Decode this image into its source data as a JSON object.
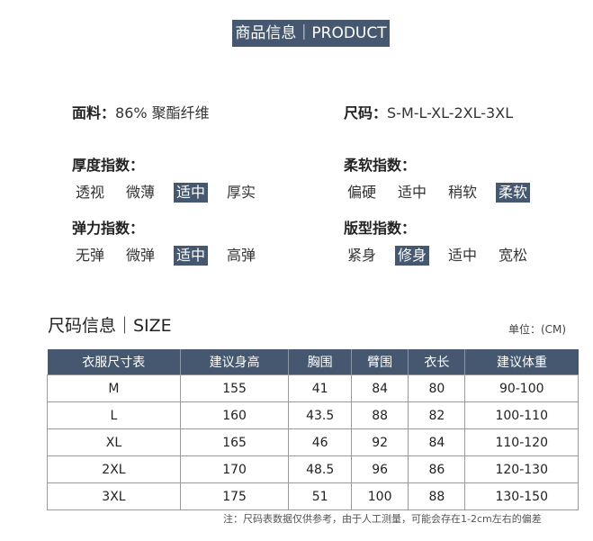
{
  "banner": "商品信息｜PRODUCT",
  "fabric": {
    "label": "面料：",
    "value": "86% 聚酯纤维"
  },
  "size": {
    "label": "尺码：",
    "value": "S-M-L-XL-2XL-3XL"
  },
  "indices": [
    {
      "label": "厚度指数：",
      "options": [
        "透视",
        "微薄",
        "适中",
        "厚实"
      ],
      "selected": 2
    },
    {
      "label": "柔软指数：",
      "options": [
        "偏硬",
        "适中",
        "稍软",
        "柔软"
      ],
      "selected": 3
    },
    {
      "label": "弹力指数：",
      "options": [
        "无弹",
        "微弹",
        "适中",
        "高弹"
      ],
      "selected": 2
    },
    {
      "label": "版型指数：",
      "options": [
        "紧身",
        "修身",
        "适中",
        "宽松"
      ],
      "selected": 1
    }
  ],
  "size_section": {
    "title": "尺码信息｜SIZE",
    "unit": "单位：(CM)"
  },
  "table": {
    "headers": [
      "衣服尺寸表",
      "建议身高",
      "胸围",
      "臂围",
      "衣长",
      "建议体重"
    ],
    "rows": [
      [
        "M",
        "155",
        "41",
        "84",
        "80",
        "90-100"
      ],
      [
        "L",
        "160",
        "43.5",
        "88",
        "82",
        "100-110"
      ],
      [
        "XL",
        "165",
        "46",
        "92",
        "84",
        "110-120"
      ],
      [
        "2XL",
        "170",
        "48.5",
        "96",
        "86",
        "120-130"
      ],
      [
        "3XL",
        "175",
        "51",
        "100",
        "88",
        "130-150"
      ]
    ]
  },
  "note": "注：尺码表数据仅供参考，由于人工测量，可能会存在1-2cm左右的偏差",
  "colors": {
    "accent": "#45586f"
  }
}
